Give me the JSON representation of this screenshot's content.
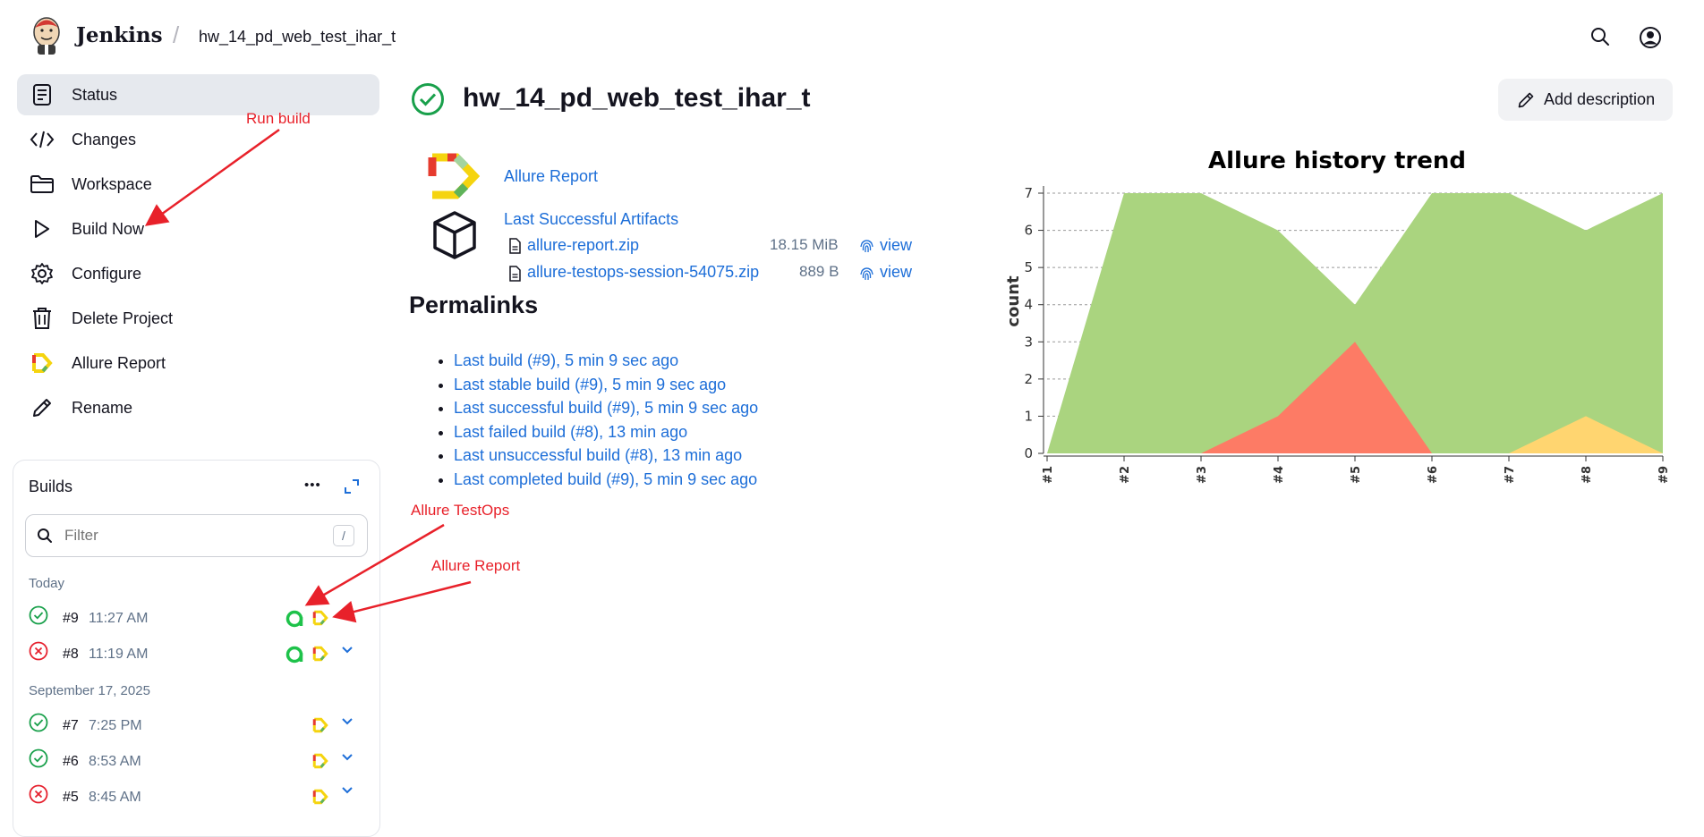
{
  "header": {
    "app_name": "Jenkins",
    "breadcrumb_separator": "/",
    "project_crumb": "hw_14_pd_web_test_ihar_t"
  },
  "sidebar": {
    "items": [
      {
        "label": "Status",
        "icon": "document-icon"
      },
      {
        "label": "Changes",
        "icon": "code-icon"
      },
      {
        "label": "Workspace",
        "icon": "folder-icon"
      },
      {
        "label": "Build Now",
        "icon": "play-icon"
      },
      {
        "label": "Configure",
        "icon": "gear-icon"
      },
      {
        "label": "Delete Project",
        "icon": "trash-icon"
      },
      {
        "label": "Allure Report",
        "icon": "allure-icon"
      },
      {
        "label": "Rename",
        "icon": "pencil-icon"
      }
    ]
  },
  "builds": {
    "title": "Builds",
    "more": "•••",
    "filter_placeholder": "Filter",
    "filter_shortcut": "/",
    "groups": [
      {
        "date": "Today",
        "rows": [
          {
            "number": "#9",
            "time": "11:27 AM",
            "status": "success"
          },
          {
            "number": "#8",
            "time": "11:19 AM",
            "status": "failed"
          }
        ]
      },
      {
        "date": "September 17, 2025",
        "rows": [
          {
            "number": "#7",
            "time": "7:25 PM",
            "status": "success"
          },
          {
            "number": "#6",
            "time": "8:53 AM",
            "status": "success"
          },
          {
            "number": "#5",
            "time": "8:45 AM",
            "status": "failed"
          }
        ]
      }
    ]
  },
  "main": {
    "title": "hw_14_pd_web_test_ihar_t",
    "add_description": "Add description",
    "allure_report_link": "Allure Report",
    "artifacts_title": "Last Successful Artifacts",
    "artifacts": [
      {
        "name": "allure-report.zip",
        "size": "18.15 MiB",
        "view": "view"
      },
      {
        "name": "allure-testops-session-54075.zip",
        "size": "889 B",
        "view": "view"
      }
    ],
    "permalinks_title": "Permalinks",
    "permalinks": [
      "Last build (#9), 5 min 9 sec ago",
      "Last stable build (#9), 5 min 9 sec ago",
      "Last successful build (#9), 5 min 9 sec ago",
      "Last failed build (#8), 13 min ago",
      "Last unsuccessful build (#8), 13 min ago",
      "Last completed build (#9), 5 min 9 sec ago"
    ]
  },
  "annotations": {
    "run_build": "Run build",
    "allure_testops": "Allure TestOps",
    "allure_report": "Allure Report"
  },
  "colors": {
    "passed": "#aad47f",
    "failed": "#fd7b65",
    "broken": "#ffd570",
    "link": "#1d6ed8",
    "annotation": "#e8212a"
  },
  "chart_data": {
    "type": "area",
    "title": "Allure history trend",
    "xlabel": "",
    "ylabel": "count",
    "categories": [
      "#1",
      "#2",
      "#3",
      "#4",
      "#5",
      "#6",
      "#7",
      "#8",
      "#9"
    ],
    "ylim": [
      0,
      7
    ],
    "yticks": [
      0,
      1,
      2,
      3,
      4,
      5,
      6,
      7
    ],
    "grid": true,
    "series": [
      {
        "color": "#aad47f",
        "values": [
          0,
          7,
          7,
          6,
          4,
          7,
          7,
          6,
          7
        ]
      },
      {
        "color": "#fd7b65",
        "values": [
          0,
          0,
          0,
          1,
          3,
          0,
          0,
          0,
          0
        ]
      },
      {
        "color": "#ffd570",
        "values": [
          0,
          0,
          0,
          0,
          0,
          0,
          0,
          1,
          0
        ]
      }
    ]
  }
}
